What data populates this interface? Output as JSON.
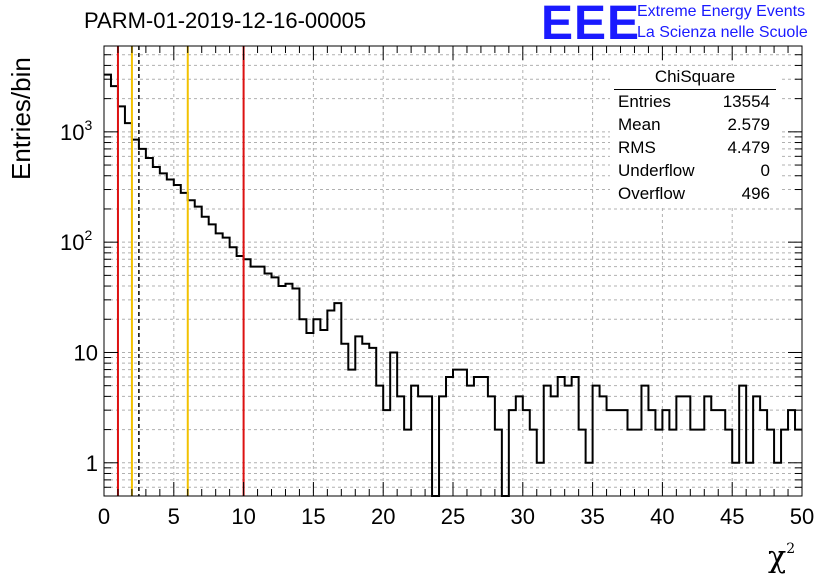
{
  "header": {
    "title": "PARM-01-2019-12-16-00005",
    "logo_text": "EEE",
    "org_line1": "Extreme Energy Events",
    "org_line2": "La Scienza nelle Scuole"
  },
  "stats_box": {
    "title": "ChiSquare",
    "rows": [
      {
        "label": "Entries",
        "value": "13554"
      },
      {
        "label": "Mean",
        "value": "2.579"
      },
      {
        "label": "RMS",
        "value": "4.479"
      },
      {
        "label": "Underflow",
        "value": "0"
      },
      {
        "label": "Overflow",
        "value": "496"
      }
    ]
  },
  "colors": {
    "histogram": "#000000",
    "red_lines": "#dd1111",
    "yellow_lines": "#f2c200",
    "dashed_line": "#000000",
    "logo": "#1a1aff",
    "grid": "#b0b0b0"
  },
  "chart_data": {
    "type": "histogram",
    "title": "PARM-01-2019-12-16-00005",
    "xlabel": "χ²",
    "ylabel": "Entries/bin",
    "xlim": [
      0,
      50
    ],
    "ylim": [
      0.5,
      6000
    ],
    "yscale": "log",
    "grid": true,
    "x_ticks": [
      0,
      5,
      10,
      15,
      20,
      25,
      30,
      35,
      40,
      45,
      50
    ],
    "y_tick_labels": [
      "1",
      "10",
      "10²",
      "10³"
    ],
    "bin_width": 0.5,
    "bin_edges_start": 0,
    "counts": [
      3300,
      2600,
      1700,
      1200,
      850,
      700,
      580,
      480,
      420,
      370,
      330,
      280,
      240,
      210,
      170,
      145,
      120,
      110,
      90,
      75,
      70,
      60,
      60,
      52,
      48,
      40,
      42,
      38,
      20,
      15,
      20,
      16,
      24,
      28,
      12,
      7,
      14,
      12,
      11,
      5,
      3,
      10,
      4,
      2,
      5,
      4,
      4,
      0,
      4,
      6,
      7,
      7,
      5,
      6,
      6,
      4,
      2,
      0,
      3,
      4,
      3,
      2,
      1,
      5,
      4,
      6,
      5,
      6,
      2,
      1,
      5,
      4,
      3,
      3,
      3,
      2,
      2,
      5,
      3,
      2,
      3,
      2,
      4,
      4,
      2,
      2,
      4,
      3,
      3,
      2,
      1,
      5,
      1,
      4,
      3,
      2,
      1,
      2,
      3,
      2
    ],
    "vertical_lines": [
      {
        "x": 1.0,
        "style": "solid",
        "color": "red"
      },
      {
        "x": 2.0,
        "style": "solid",
        "color": "yellow"
      },
      {
        "x": 2.5,
        "style": "dashed",
        "color": "black"
      },
      {
        "x": 6.0,
        "style": "solid",
        "color": "yellow"
      },
      {
        "x": 10.0,
        "style": "solid",
        "color": "red"
      }
    ]
  }
}
